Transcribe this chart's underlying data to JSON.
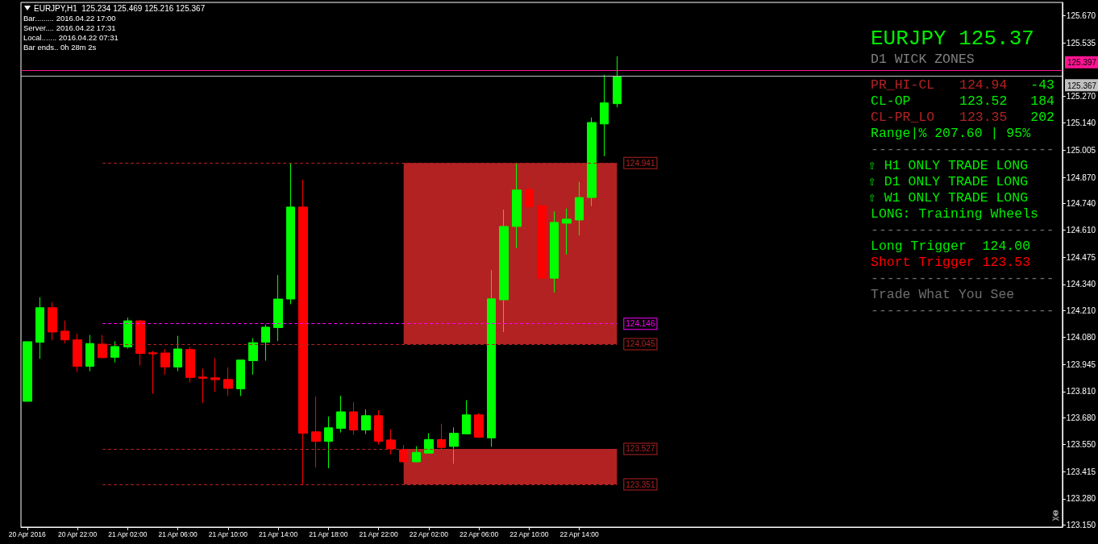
{
  "chart_data": {
    "type": "candlestick",
    "title": "EURJPY,H1  125.234 125.469 125.216 125.367",
    "x": [
      "2016-04-20T18:00",
      "2016-04-20T19:00",
      "2016-04-20T20:00",
      "2016-04-20T21:00",
      "2016-04-20T22:00",
      "2016-04-20T23:00",
      "2016-04-21T00:00",
      "2016-04-21T01:00",
      "2016-04-21T02:00",
      "2016-04-21T03:00",
      "2016-04-21T04:00",
      "2016-04-21T05:00",
      "2016-04-21T06:00",
      "2016-04-21T07:00",
      "2016-04-21T08:00",
      "2016-04-21T09:00",
      "2016-04-21T10:00",
      "2016-04-21T11:00",
      "2016-04-21T12:00",
      "2016-04-21T13:00",
      "2016-04-21T14:00",
      "2016-04-21T15:00",
      "2016-04-21T16:00",
      "2016-04-21T17:00",
      "2016-04-21T18:00",
      "2016-04-21T19:00",
      "2016-04-21T20:00",
      "2016-04-21T21:00",
      "2016-04-21T22:00",
      "2016-04-21T23:00",
      "2016-04-22T00:00",
      "2016-04-22T01:00",
      "2016-04-22T02:00",
      "2016-04-22T03:00",
      "2016-04-22T04:00",
      "2016-04-22T05:00",
      "2016-04-22T06:00",
      "2016-04-22T07:00",
      "2016-04-22T08:00",
      "2016-04-22T09:00",
      "2016-04-22T10:00",
      "2016-04-22T11:00",
      "2016-04-22T12:00",
      "2016-04-22T13:00",
      "2016-04-22T14:00",
      "2016-04-22T15:00",
      "2016-04-22T16:00",
      "2016-04-22T17:00"
    ],
    "ohlc": [
      [
        123.762,
        124.057,
        123.762,
        124.057
      ],
      [
        124.054,
        124.277,
        123.972,
        124.225
      ],
      [
        124.225,
        124.253,
        124.064,
        124.105
      ],
      [
        124.109,
        124.162,
        124.048,
        124.066
      ],
      [
        124.066,
        124.097,
        123.908,
        123.935
      ],
      [
        123.935,
        124.09,
        123.911,
        124.048
      ],
      [
        124.045,
        124.09,
        123.975,
        123.978
      ],
      [
        123.98,
        124.059,
        123.954,
        124.033
      ],
      [
        124.031,
        124.176,
        124.023,
        124.16
      ],
      [
        124.16,
        124.165,
        123.939,
        123.999
      ],
      [
        124.002,
        124.011,
        123.8,
        123.997
      ],
      [
        124.001,
        124.021,
        123.894,
        123.932
      ],
      [
        123.932,
        124.086,
        123.911,
        124.021
      ],
      [
        124.018,
        124.031,
        123.856,
        123.88
      ],
      [
        123.882,
        123.923,
        123.754,
        123.876
      ],
      [
        123.878,
        123.975,
        123.809,
        123.869
      ],
      [
        123.87,
        123.93,
        123.789,
        123.826
      ],
      [
        123.824,
        123.966,
        123.788,
        123.966
      ],
      [
        123.963,
        124.074,
        123.894,
        124.052
      ],
      [
        124.054,
        124.141,
        123.963,
        124.129
      ],
      [
        124.127,
        124.387,
        124.06,
        124.268
      ],
      [
        124.268,
        124.941,
        124.242,
        124.723
      ],
      [
        124.723,
        124.858,
        123.351,
        123.604
      ],
      [
        123.611,
        123.786,
        123.435,
        123.564
      ],
      [
        123.564,
        123.687,
        123.431,
        123.631
      ],
      [
        123.628,
        123.79,
        123.608,
        123.71
      ],
      [
        123.71,
        123.758,
        123.596,
        123.62
      ],
      [
        123.62,
        123.722,
        123.6,
        123.691
      ],
      [
        123.691,
        123.718,
        123.548,
        123.564
      ],
      [
        123.571,
        123.624,
        123.499,
        123.527
      ],
      [
        123.523,
        123.547,
        123.46,
        123.463
      ],
      [
        123.463,
        123.54,
        123.46,
        123.509
      ],
      [
        123.506,
        123.604,
        123.504,
        123.573
      ],
      [
        123.573,
        123.651,
        123.389,
        123.534
      ],
      [
        123.539,
        123.633,
        123.453,
        123.604
      ],
      [
        123.601,
        123.768,
        123.6,
        123.695
      ],
      [
        123.695,
        123.703,
        123.581,
        123.584
      ],
      [
        123.581,
        124.411,
        123.537,
        124.269
      ],
      [
        124.264,
        124.71,
        124.104,
        124.627
      ],
      [
        124.627,
        124.938,
        124.52,
        124.807
      ],
      [
        124.81,
        124.87,
        124.592,
        124.725
      ],
      [
        124.73,
        124.796,
        124.361,
        124.371
      ],
      [
        124.371,
        124.701,
        124.3,
        124.647
      ],
      [
        124.643,
        124.715,
        124.488,
        124.663
      ],
      [
        124.659,
        124.847,
        124.582,
        124.77
      ],
      [
        124.77,
        125.166,
        124.727,
        125.141
      ],
      [
        125.134,
        125.377,
        124.974,
        125.238
      ],
      [
        125.234,
        125.469,
        125.216,
        125.367
      ]
    ],
    "colors": [
      "#00ff00",
      "#00ff00",
      "#ff0000",
      "#ff0000",
      "#ff0000",
      "#00ff00",
      "#ff0000",
      "#00ff00",
      "#00ff00",
      "#ff0000",
      "#ff0000",
      "#ff0000",
      "#00ff00",
      "#ff0000",
      "#ff0000",
      "#ff0000",
      "#ff0000",
      "#00ff00",
      "#00ff00",
      "#00ff00",
      "#00ff00",
      "#00ff00",
      "#ff0000",
      "#ff0000",
      "#00ff00",
      "#00ff00",
      "#ff0000",
      "#00ff00",
      "#ff0000",
      "#ff0000",
      "#ff0000",
      "#00ff00",
      "#00ff00",
      "#ff0000",
      "#00ff00",
      "#00ff00",
      "#ff0000",
      "#00ff00",
      "#00ff00",
      "#00ff00",
      "#ff0000",
      "#ff0000",
      "#00ff00",
      "#00ff00",
      "#00ff00",
      "#00ff00",
      "#00ff00",
      "#00ff00"
    ],
    "xlim": [
      "2016-04-20T17:30",
      "2016-04-24T04:30"
    ],
    "xticks": [
      {
        "value": "2016-04-20T18:00",
        "label": "20 Apr 2016"
      },
      {
        "value": "2016-04-20T22:00",
        "label": "20 Apr 22:00"
      },
      {
        "value": "2016-04-21T02:00",
        "label": "21 Apr 02:00"
      },
      {
        "value": "2016-04-21T06:00",
        "label": "21 Apr 06:00"
      },
      {
        "value": "2016-04-21T10:00",
        "label": "21 Apr 10:00"
      },
      {
        "value": "2016-04-21T14:00",
        "label": "21 Apr 14:00"
      },
      {
        "value": "2016-04-21T18:00",
        "label": "21 Apr 18:00"
      },
      {
        "value": "2016-04-21T22:00",
        "label": "21 Apr 22:00"
      },
      {
        "value": "2016-04-22T02:00",
        "label": "22 Apr 02:00"
      },
      {
        "value": "2016-04-22T06:00",
        "label": "22 Apr 06:00"
      },
      {
        "value": "2016-04-22T10:00",
        "label": "22 Apr 10:00"
      },
      {
        "value": "2016-04-22T14:00",
        "label": "22 Apr 14:00"
      }
    ],
    "ylim": [
      123.14,
      125.735
    ],
    "yticks": [
      {
        "value": 123.15,
        "label": "123.150"
      },
      {
        "value": 123.28,
        "label": "123.280"
      },
      {
        "value": 123.415,
        "label": "123.415"
      },
      {
        "value": 123.55,
        "label": "123.550"
      },
      {
        "value": 123.68,
        "label": "123.680"
      },
      {
        "value": 123.81,
        "label": "123.810"
      },
      {
        "value": 123.945,
        "label": "123.945"
      },
      {
        "value": 124.08,
        "label": "124.080"
      },
      {
        "value": 124.21,
        "label": "124.210"
      },
      {
        "value": 124.34,
        "label": "124.340"
      },
      {
        "value": 124.475,
        "label": "124.475"
      },
      {
        "value": 124.61,
        "label": "124.610"
      },
      {
        "value": 124.74,
        "label": "124.740"
      },
      {
        "value": 124.87,
        "label": "124.870"
      },
      {
        "value": 125.005,
        "label": "125.005"
      },
      {
        "value": 125.14,
        "label": "125.140"
      },
      {
        "value": 125.27,
        "label": "125.270"
      },
      {
        "value": 125.535,
        "label": "125.535"
      },
      {
        "value": 125.67,
        "label": "125.670"
      }
    ],
    "ref_lines": [
      {
        "axis": "y",
        "value": 125.397,
        "label": "125.397",
        "color": "#ff1493",
        "line_style": "solid"
      },
      {
        "axis": "y",
        "value": 125.367,
        "label": "125.367",
        "color": "#c0c0c0",
        "line_style": "solid"
      },
      {
        "axis": "y",
        "value": 124.941,
        "label": "124.941",
        "color": "#b22222",
        "line_style": "dashed"
      },
      {
        "axis": "y",
        "value": 124.146,
        "label": "124.146",
        "color": "#ff00ff",
        "line_style": "dashed"
      },
      {
        "axis": "y",
        "value": 124.045,
        "label": "124.045",
        "color": "#b22222",
        "line_style": "dashed"
      },
      {
        "axis": "y",
        "value": 123.527,
        "label": "123.527",
        "color": "#b22222",
        "line_style": "dashed"
      },
      {
        "axis": "y",
        "value": 123.351,
        "label": "123.351",
        "color": "#b22222",
        "line_style": "dashed"
      }
    ],
    "bands": [
      {
        "axis": "y",
        "from": 124.045,
        "to": 124.941,
        "color": "#b22222"
      },
      {
        "axis": "y",
        "from": 123.351,
        "to": 123.527,
        "color": "#b22222"
      }
    ],
    "annotations": [
      "Bar......... 2016.04.22 17:00",
      "Server.... 2016.04.22 17:31",
      "Local....... 2016.04.22 07:31",
      "Bar ends.. 0h 28m 2s",
      "EURJPY 125.37",
      "D1 WICK ZONES",
      "PR_HI-CL",
      "124.94",
      "-43",
      "CL-OP",
      "123.52",
      "184",
      "CL-PR_LO",
      "123.35",
      "202",
      "Range|% 207.60 | 95%",
      "-----------------------",
      "⇧ H1 ONLY TRADE LONG",
      "⇧ D1 ONLY TRADE LONG",
      "⇧ W1 ONLY TRADE LONG",
      "LONG: Training Wheels",
      "-----------------------",
      "Long Trigger  124.00",
      "Short Trigger 123.53",
      "-----------------------",
      "Trade What You See",
      "-----------------------"
    ]
  }
}
